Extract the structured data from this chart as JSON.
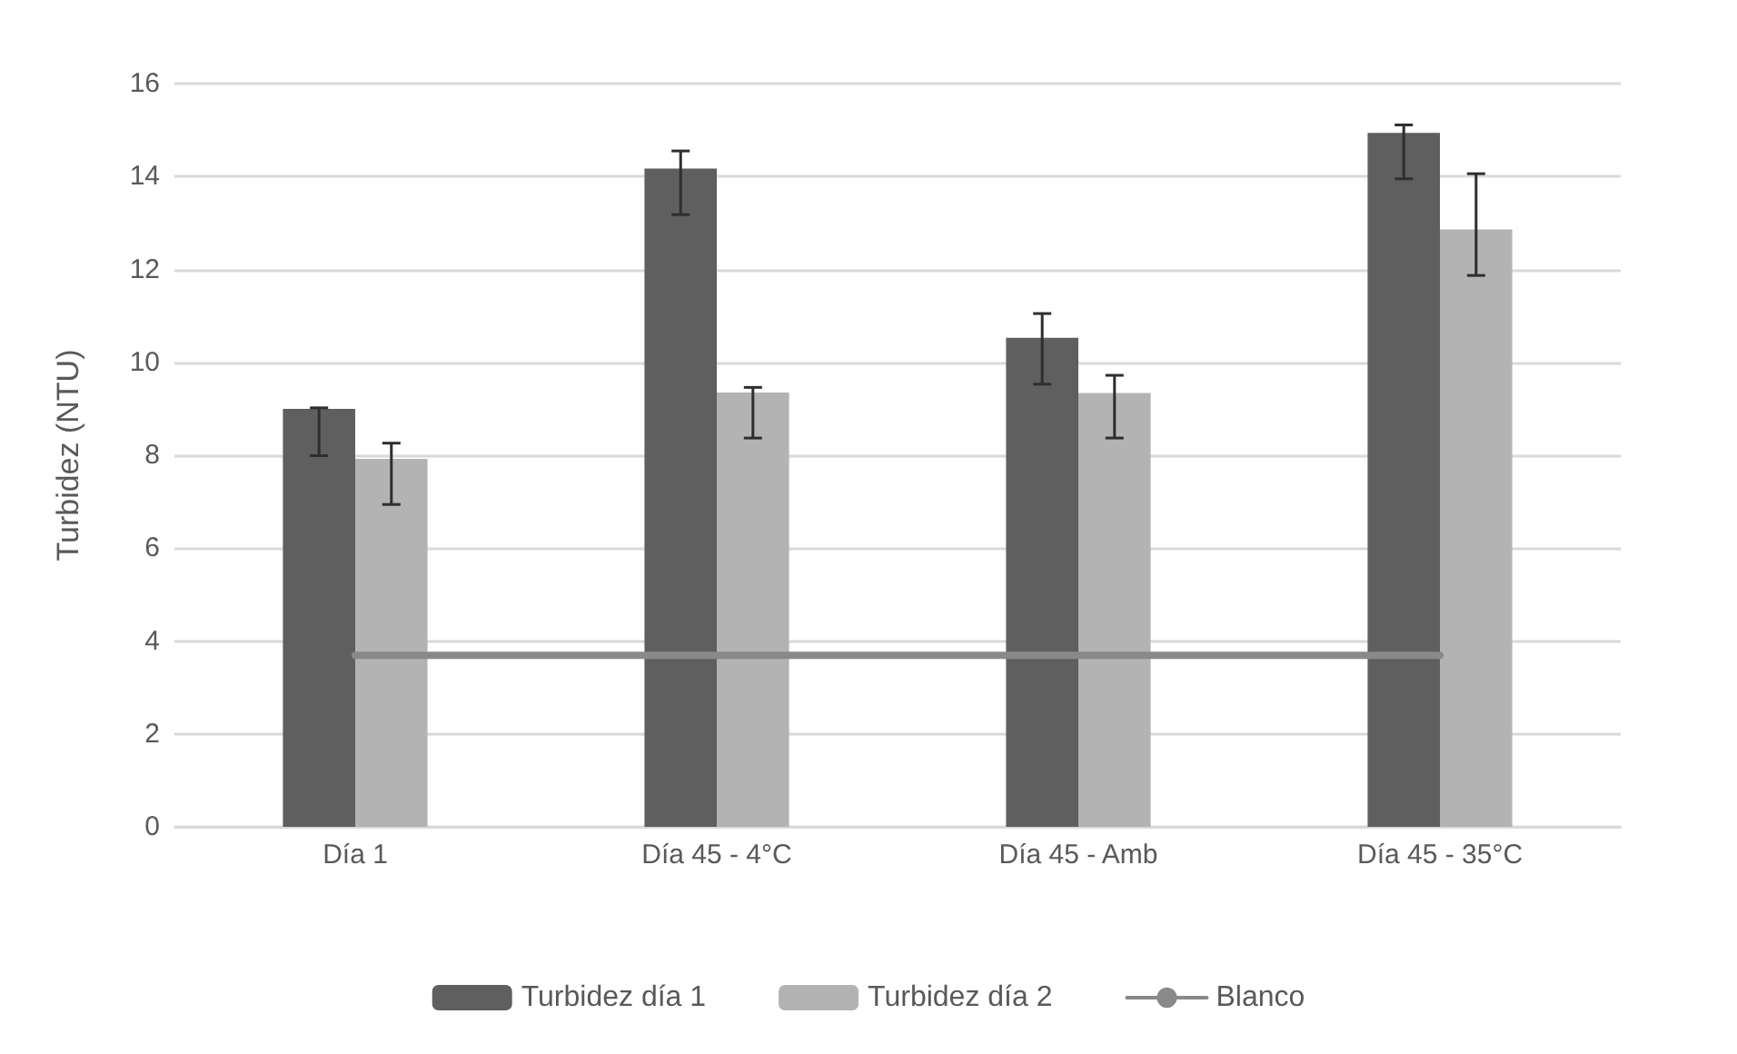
{
  "chart_data": {
    "type": "bar",
    "ylabel": "Turbidez (NTU)",
    "categories": [
      "Día 1",
      "Día 45 - 4°C",
      "Día 45 - Amb",
      "Día 45 - 35°C"
    ],
    "series": [
      {
        "name": "Turbidez día 1",
        "color": "#5f5f5f",
        "values": [
          9.0,
          14.17,
          10.53,
          14.94
        ],
        "errors": [
          [
            7.99,
            9.02
          ],
          [
            13.18,
            14.55
          ],
          [
            9.53,
            11.05
          ],
          [
            13.95,
            15.11
          ]
        ]
      },
      {
        "name": "Turbidez día 2",
        "color": "#b3b3b3",
        "values": [
          7.92,
          9.35,
          9.34,
          12.86
        ],
        "errors": [
          [
            6.94,
            8.26
          ],
          [
            8.37,
            9.46
          ],
          [
            8.37,
            9.72
          ],
          [
            11.87,
            14.06
          ]
        ]
      },
      {
        "name": "Blanco",
        "type": "line",
        "color": "#898989",
        "values": [
          3.69,
          3.69,
          3.69,
          3.69
        ]
      }
    ],
    "ylim": [
      0,
      16
    ],
    "yticks": [
      0,
      2,
      4,
      6,
      8,
      10,
      12,
      14,
      16
    ],
    "grid": "y",
    "legend": "bottom",
    "marker": "none"
  }
}
